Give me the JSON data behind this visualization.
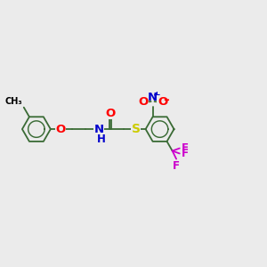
{
  "background_color": "#ebebeb",
  "bond_color": "#3a6b35",
  "bond_width": 1.3,
  "atom_colors": {
    "O": "#ff0000",
    "N": "#0000cc",
    "S": "#cccc00",
    "F": "#cc00cc",
    "C": "#000000",
    "H": "#000000"
  },
  "font_size": 8.5,
  "fig_width": 3.0,
  "fig_height": 3.0,
  "dpi": 100,
  "xlim": [
    0,
    12
  ],
  "ylim": [
    0,
    10
  ]
}
